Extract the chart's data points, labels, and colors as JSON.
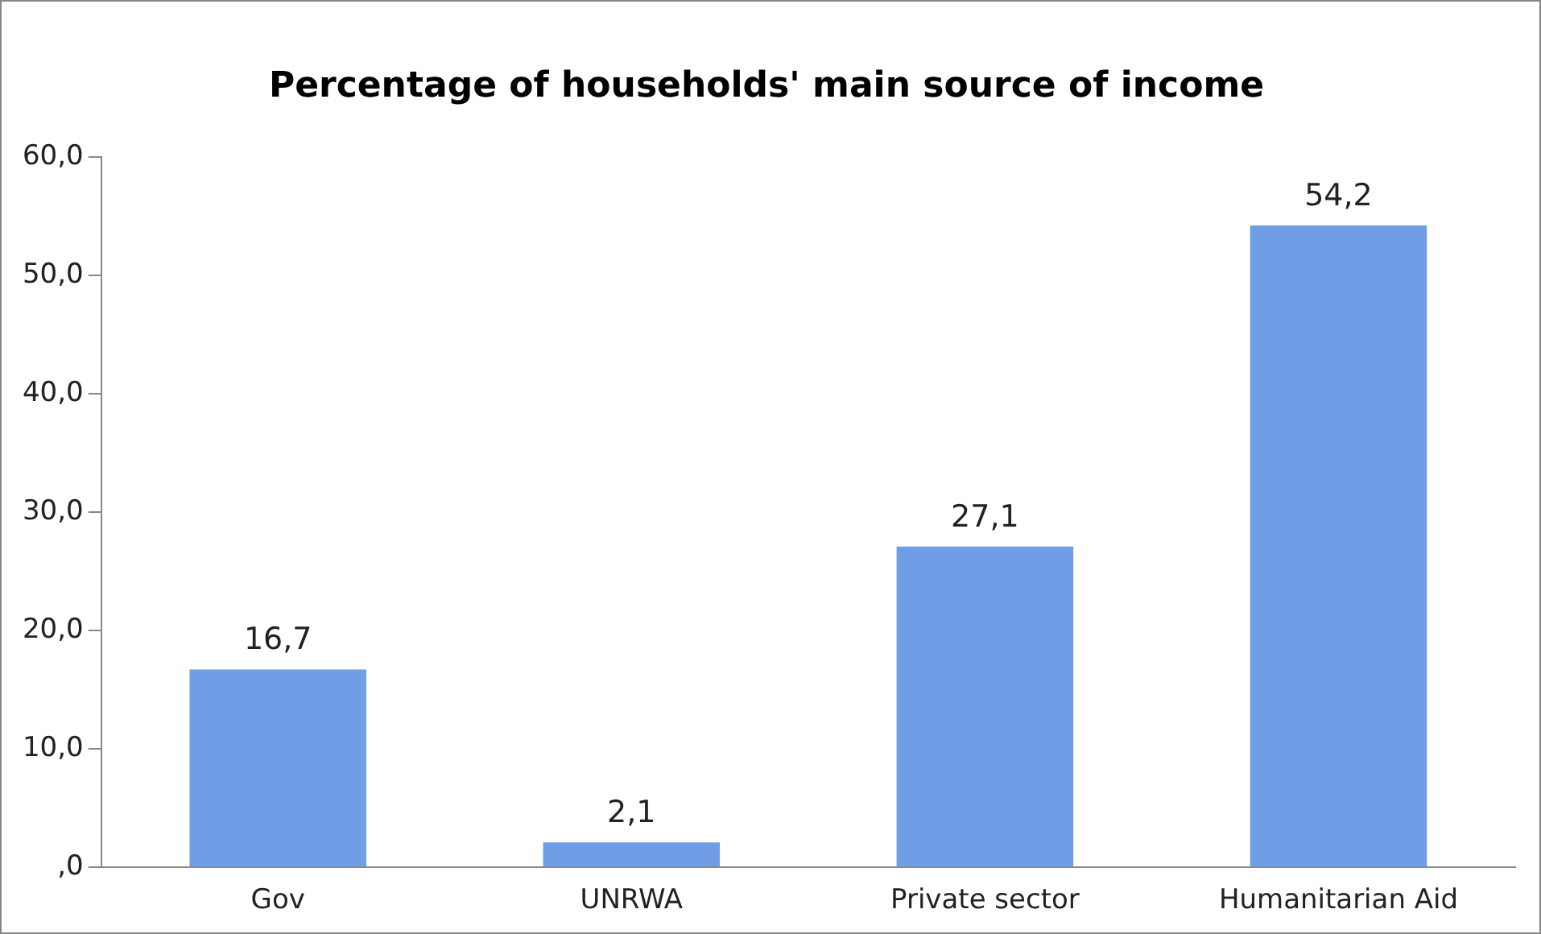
{
  "chart_data": {
    "type": "bar",
    "title": "Percentage of households' main source of income",
    "categories": [
      "Gov",
      "UNRWA",
      "Private sector",
      "Humanitarian Aid"
    ],
    "values": [
      16.7,
      2.1,
      27.1,
      54.2
    ],
    "value_labels": [
      "16,7",
      "2,1",
      "27,1",
      "54,2"
    ],
    "color": "#6f9ee6",
    "ylim": [
      0,
      60
    ],
    "yticks": [
      {
        "value": 0,
        "label": ",0"
      },
      {
        "value": 10,
        "label": "10,0"
      },
      {
        "value": 20,
        "label": "20,0"
      },
      {
        "value": 30,
        "label": "30,0"
      },
      {
        "value": 40,
        "label": "40,0"
      },
      {
        "value": 50,
        "label": "50,0"
      },
      {
        "value": 60,
        "label": "60,0"
      }
    ],
    "grid": false,
    "legend": false
  }
}
